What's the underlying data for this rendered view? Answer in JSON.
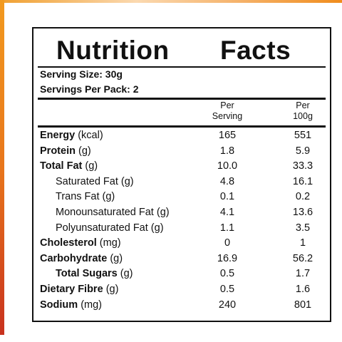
{
  "header": {
    "title_left": "Nutrition",
    "title_right": "Facts"
  },
  "serving": {
    "size": "Serving Size: 30g",
    "per_pack": "Servings Per Pack: 2"
  },
  "columns": [
    [
      "Per",
      "Serving"
    ],
    [
      "Per",
      "100g"
    ]
  ],
  "rows": [
    {
      "name": "Energy",
      "unit": "(kcal)",
      "per_serving": "165",
      "per_100g": "551"
    },
    {
      "name": "Protein",
      "unit": "(g)",
      "per_serving": "1.8",
      "per_100g": "5.9"
    },
    {
      "name": "Total Fat",
      "unit": "(g)",
      "per_serving": "10.0",
      "per_100g": "33.3"
    },
    {
      "name": "Saturated Fat (g)",
      "per_serving": "4.8",
      "per_100g": "16.1"
    },
    {
      "name": "Trans Fat (g)",
      "per_serving": "0.1",
      "per_100g": "0.2"
    },
    {
      "name": "Monounsaturated Fat (g)",
      "per_serving": "4.1",
      "per_100g": "13.6"
    },
    {
      "name": "Polyunsaturated Fat (g)",
      "per_serving": "1.1",
      "per_100g": "3.5"
    },
    {
      "name": "Cholesterol",
      "unit": "(mg)",
      "per_serving": "0",
      "per_100g": "1"
    },
    {
      "name": "Carbohydrate",
      "unit": "(g)",
      "per_serving": "16.9",
      "per_100g": "56.2"
    },
    {
      "name": "Total Sugars",
      "unit": "(g)",
      "per_serving": "0.5",
      "per_100g": "1.7"
    },
    {
      "name": "Dietary Fibre",
      "unit": "(g)",
      "per_serving": "0.5",
      "per_100g": "1.6"
    },
    {
      "name": "Sodium",
      "unit": "(mg)",
      "per_serving": "240",
      "per_100g": "801"
    }
  ]
}
